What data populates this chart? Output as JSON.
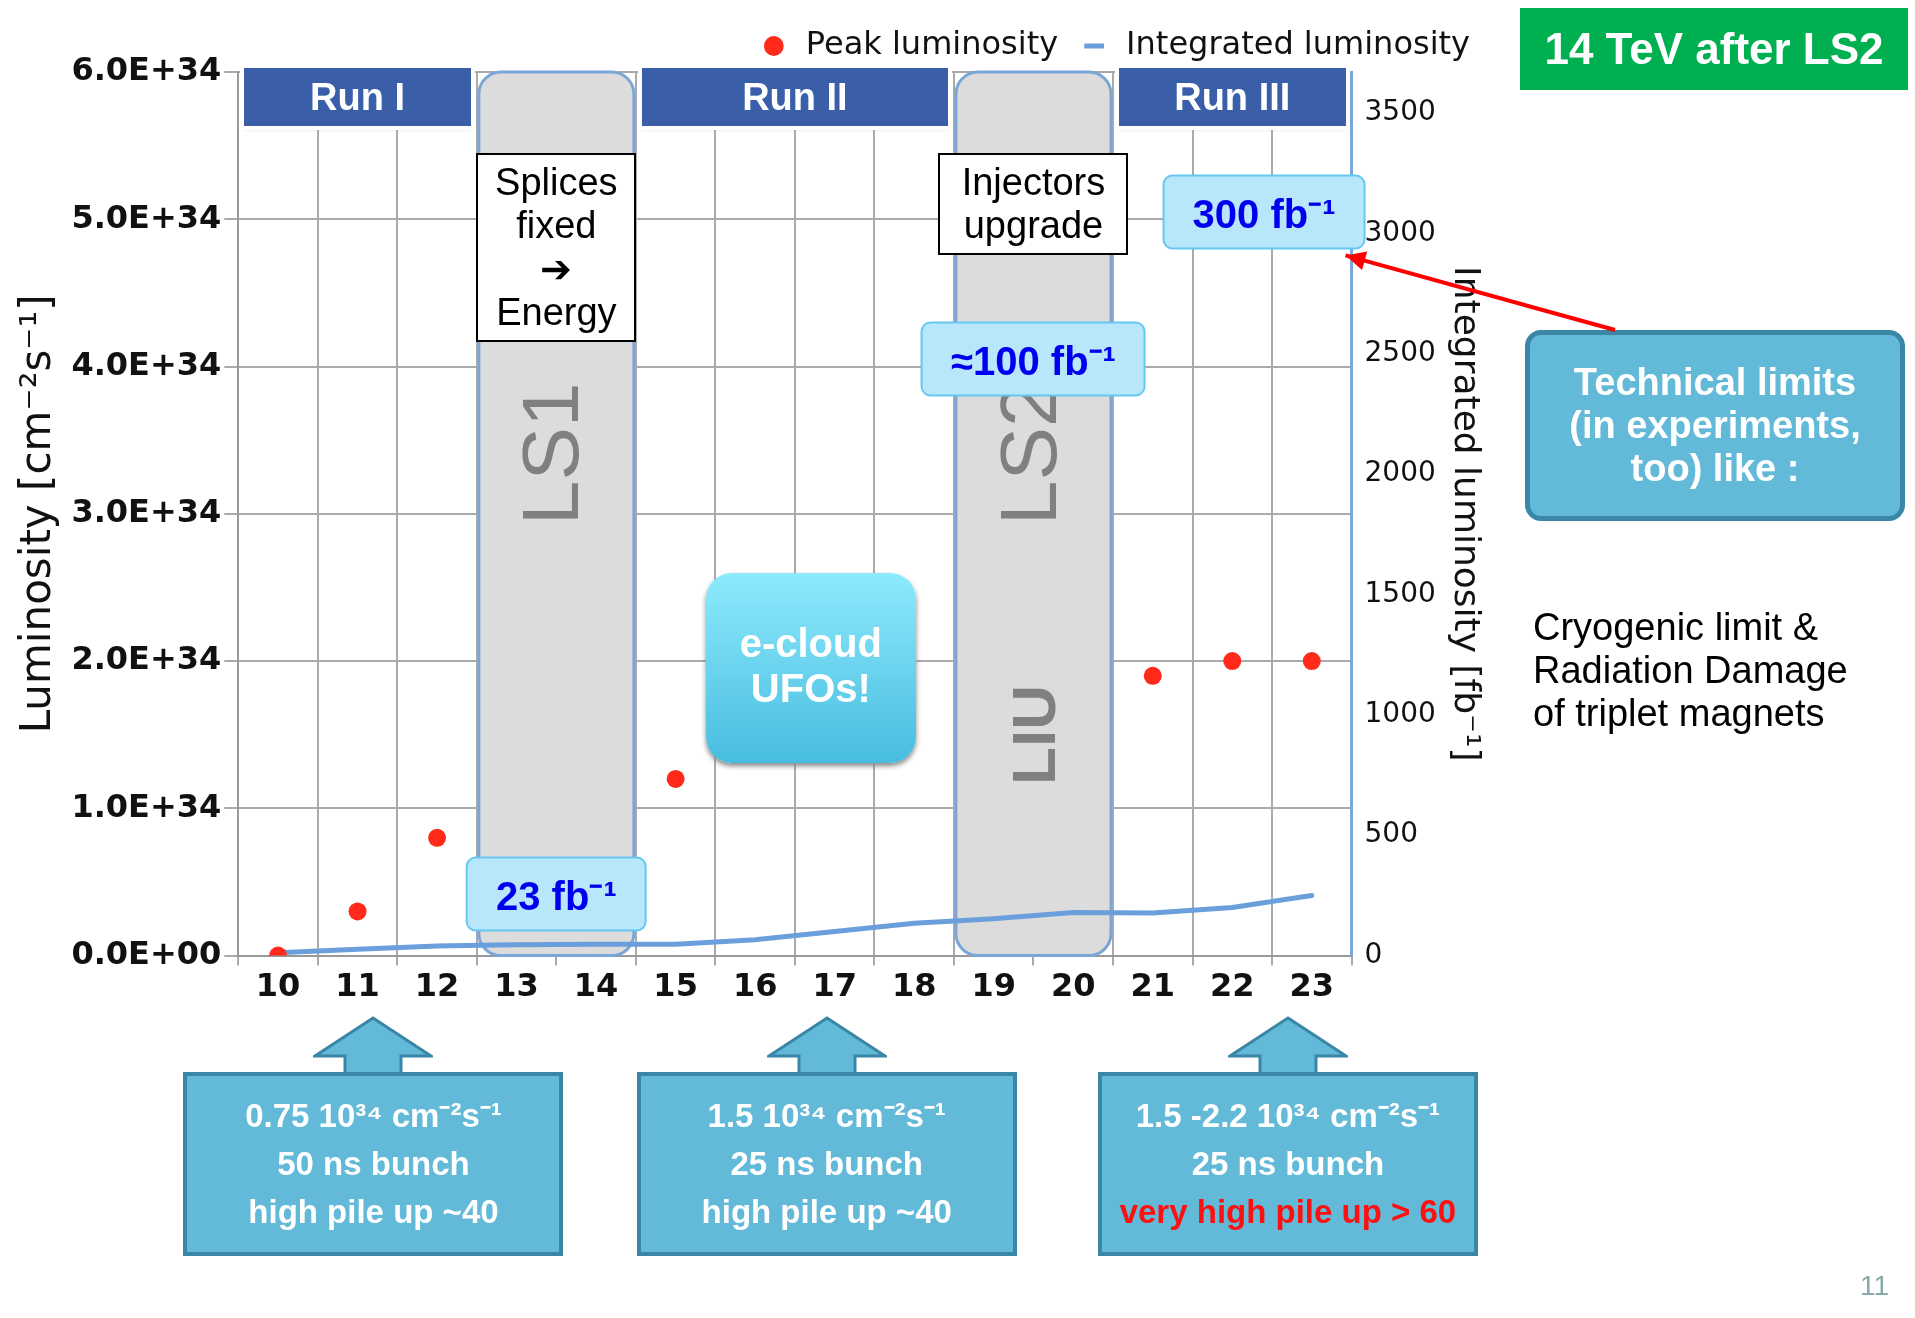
{
  "chart_data": {
    "type": "line",
    "categories": [
      "10",
      "11",
      "12",
      "13",
      "14",
      "15",
      "16",
      "17",
      "18",
      "19",
      "20",
      "21",
      "22",
      "23"
    ],
    "ylabel": "Luminosity [cm⁻²s⁻¹]",
    "y2label": "Integrated luminosity [fb⁻¹]",
    "ylim": [
      0,
      6e+34
    ],
    "yticks": [
      {
        "value": 0,
        "label": "0.0E+00"
      },
      {
        "value": 1e+34,
        "label": "1.0E+34"
      },
      {
        "value": 2e+34,
        "label": "2.0E+34"
      },
      {
        "value": 3e+34,
        "label": "3.0E+34"
      },
      {
        "value": 4e+34,
        "label": "4.0E+34"
      },
      {
        "value": 5e+34,
        "label": "5.0E+34"
      },
      {
        "value": 6e+34,
        "label": "6.0E+34"
      }
    ],
    "y2lim": [
      0,
      3670
    ],
    "y2ticks": [
      0,
      500,
      1000,
      1500,
      2000,
      2500,
      3000,
      3500
    ],
    "grid": true,
    "legend": "top right",
    "series": [
      {
        "type": "scatter",
        "name": "Peak luminosity",
        "color": "#ff2a1a",
        "marker": "circle",
        "values": [
          0,
          3e+33,
          8e+33,
          null,
          null,
          1.2e+34,
          null,
          null,
          null,
          null,
          null,
          1.9e+34,
          2e+34,
          2e+34
        ]
      },
      {
        "type": "line",
        "name": "Integrated luminosity",
        "color": "#6a9fdc",
        "axis": "y2",
        "line_style": "solid",
        "values": [
          12,
          26,
          40,
          45,
          47,
          47,
          66,
          100,
          134,
          153,
          179,
          177,
          200,
          250
        ]
      }
    ],
    "bands": [
      {
        "axis": "x",
        "from": "13",
        "to": "14",
        "label": "LS1",
        "color": "#dcdcdc"
      },
      {
        "axis": "x",
        "from": "19",
        "to": "20",
        "label": "LS2",
        "color": "#dcdcdc"
      }
    ],
    "annotations": [
      "Run I",
      "Run II",
      "Run III",
      "Splices\nfixed\n➔\nEnergy",
      "Injectors\nupgrade",
      "LIU",
      "23 fb⁻¹",
      "≈100 fb⁻¹",
      "300 fb⁻¹",
      "e-cloud\nUFOs!",
      "14 TeV after LS2",
      "Technical limits\n(in experiments,\ntoo) like :",
      "Cryogenic limit &\nRadiation Damage\nof triplet magnets",
      "0.75 10³⁴ cm⁻²s⁻¹\n50 ns bunch\nhigh pile up ~40",
      "1.5 10³⁴ cm⁻²s⁻¹\n25 ns bunch\nhigh pile up ~40",
      "1.5 -2.2  10³⁴ cm⁻²s⁻¹\n25 ns bunch\nvery high pile up > 60",
      "11"
    ]
  }
}
